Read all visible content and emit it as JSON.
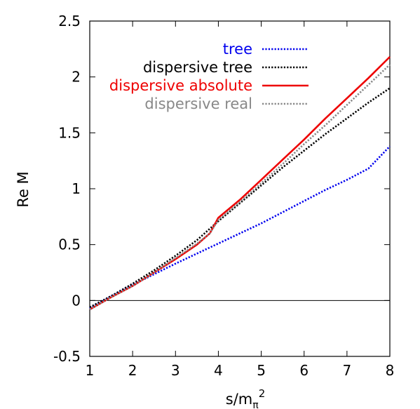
{
  "chart_data": {
    "type": "line",
    "title": "",
    "xlabel": "s/m",
    "xlabel_sub": "π",
    "xlabel_sup": "2",
    "ylabel": "Re M",
    "xlim": [
      1,
      8
    ],
    "ylim": [
      -0.5,
      2.5
    ],
    "xticks": [
      1,
      2,
      3,
      4,
      5,
      6,
      7,
      8
    ],
    "yticks": [
      -0.5,
      0,
      0.5,
      1,
      1.5,
      2,
      2.5
    ],
    "xtick_labels": [
      "1",
      "2",
      "3",
      "4",
      "5",
      "6",
      "7",
      "8"
    ],
    "ytick_labels": [
      "-0.5",
      "0",
      "0.5",
      "1",
      "1.5",
      "2",
      "2.5"
    ],
    "grid": false,
    "zero_line": true,
    "legend_position": "top-right",
    "series": [
      {
        "name": "tree",
        "color": "#0000ee",
        "dash": "dotted",
        "x": [
          1,
          1.5,
          2,
          2.5,
          3,
          3.5,
          4,
          4.5,
          5,
          5.5,
          6,
          6.5,
          7,
          7.5,
          8
        ],
        "y": [
          -0.07,
          0.04,
          0.14,
          0.235,
          0.33,
          0.42,
          0.51,
          0.6,
          0.69,
          0.79,
          0.89,
          0.99,
          1.08,
          1.18,
          1.38
        ]
      },
      {
        "name": "dispersive tree",
        "color": "#000000",
        "dash": "dotted",
        "x": [
          1,
          1.5,
          2,
          2.5,
          3,
          3.5,
          4,
          4.5,
          5,
          5.5,
          6,
          6.5,
          7,
          7.5,
          8
        ],
        "y": [
          -0.06,
          0.04,
          0.15,
          0.27,
          0.4,
          0.54,
          0.71,
          0.87,
          1.03,
          1.19,
          1.34,
          1.49,
          1.63,
          1.77,
          1.9
        ]
      },
      {
        "name": "dispersive absolute",
        "color": "#ee0000",
        "dash": "solid",
        "x": [
          1,
          1.5,
          2,
          2.5,
          3,
          3.5,
          3.8,
          4,
          4.5,
          5,
          5.5,
          6,
          6.5,
          7,
          7.5,
          8
        ],
        "y": [
          -0.08,
          0.03,
          0.13,
          0.25,
          0.37,
          0.5,
          0.6,
          0.74,
          0.9,
          1.08,
          1.26,
          1.44,
          1.63,
          1.81,
          1.99,
          2.18
        ]
      },
      {
        "name": "dispersive real",
        "color": "#888888",
        "dash": "dotted",
        "x": [
          1,
          1.5,
          2,
          2.5,
          3,
          3.5,
          3.8,
          4,
          4.5,
          5,
          5.5,
          6,
          6.5,
          7,
          7.5,
          8
        ],
        "y": [
          -0.08,
          0.03,
          0.13,
          0.25,
          0.38,
          0.51,
          0.6,
          0.72,
          0.88,
          1.05,
          1.22,
          1.4,
          1.57,
          1.75,
          1.93,
          2.11
        ]
      }
    ]
  }
}
